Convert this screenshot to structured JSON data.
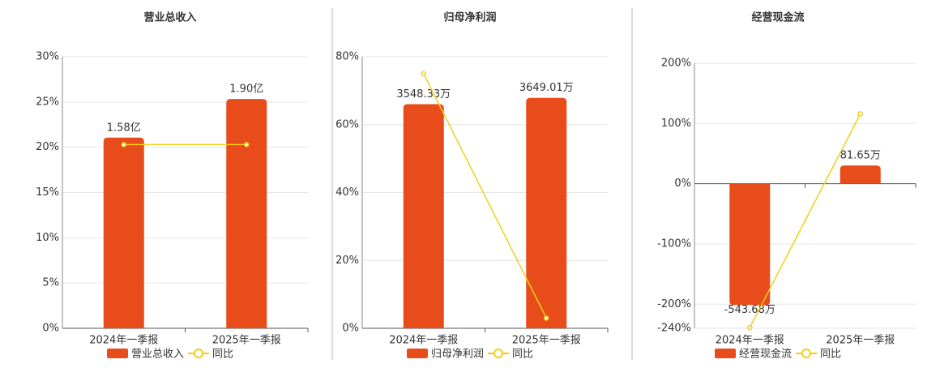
{
  "chart_data": [
    {
      "type": "bar-line",
      "title": "营业总收入",
      "categories": [
        "2024年一季报",
        "2025年一季报"
      ],
      "series": [
        {
          "name": "营业总收入",
          "color": "#e84c1a",
          "axis": "y2",
          "values": [
            1.58,
            1.9
          ],
          "value_labels": [
            "1.58亿",
            "1.90亿"
          ]
        },
        {
          "name": "同比",
          "color": "#f2cf17",
          "values": [
            20.3,
            20.3
          ]
        }
      ],
      "ylim": [
        0,
        30
      ],
      "yticks": [
        {
          "value": 0,
          "label": "0%"
        },
        {
          "value": 5,
          "label": "5%"
        },
        {
          "value": 10,
          "label": "10%"
        },
        {
          "value": 15,
          "label": "15%"
        },
        {
          "value": 20,
          "label": "20%"
        },
        {
          "value": 25,
          "label": "25%"
        },
        {
          "value": 30,
          "label": "30%"
        }
      ],
      "y2lim": [
        0,
        2.25
      ],
      "grid": true
    },
    {
      "type": "bar-line",
      "title": "归母净利润",
      "categories": [
        "2024年一季报",
        "2025年一季报"
      ],
      "series": [
        {
          "name": "归母净利润",
          "color": "#e84c1a",
          "axis": "y2",
          "values": [
            3548.33,
            3649.01
          ],
          "value_labels": [
            "3548.33万",
            "3649.01万"
          ]
        },
        {
          "name": "同比",
          "color": "#f2cf17",
          "values": [
            75,
            3
          ]
        }
      ],
      "ylim": [
        0,
        80
      ],
      "yticks": [
        {
          "value": 0,
          "label": "0%"
        },
        {
          "value": 20,
          "label": "20%"
        },
        {
          "value": 40,
          "label": "40%"
        },
        {
          "value": 60,
          "label": "60%"
        },
        {
          "value": 80,
          "label": "80%"
        }
      ],
      "y2lim": [
        0,
        4300
      ],
      "grid": true
    },
    {
      "type": "bar-line",
      "title": "经营现金流",
      "categories": [
        "2024年一季报",
        "2025年一季报"
      ],
      "series": [
        {
          "name": "经营现金流",
          "color": "#e84c1a",
          "axis": "y2",
          "values": [
            -543.68,
            81.65
          ],
          "value_labels": [
            "-543.68万",
            "81.65万"
          ]
        },
        {
          "name": "同比",
          "color": "#f2cf17",
          "values": [
            -239,
            116
          ]
        }
      ],
      "ylim": [
        -240,
        200
      ],
      "yticks": [
        {
          "value": -240,
          "label": "-240%"
        },
        {
          "value": -200,
          "label": "-200%"
        },
        {
          "value": -100,
          "label": "-100%"
        },
        {
          "value": 0,
          "label": "0%"
        },
        {
          "value": 100,
          "label": "100%"
        },
        {
          "value": 200,
          "label": "200%"
        }
      ],
      "y2lim": [
        -648,
        540
      ],
      "grid": true
    }
  ]
}
